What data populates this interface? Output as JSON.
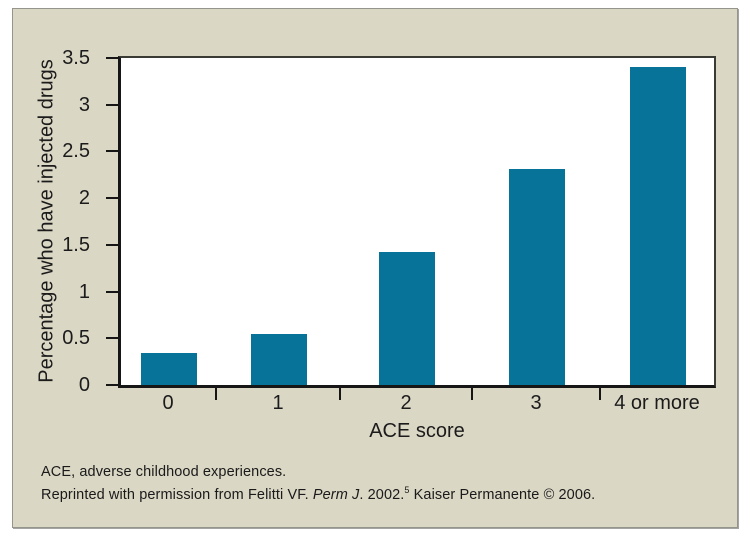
{
  "figure": {
    "footnote_line1": "ACE, adverse childhood experiences.",
    "footnote_line2": {
      "prefix": "Reprinted with permission from Felitti VF. ",
      "italic": "Perm J",
      "mid": ". 2002.",
      "superscript": "5",
      "suffix": " Kaiser Permanente © 2006."
    }
  },
  "chart_data": {
    "type": "bar",
    "title": "",
    "xlabel": "ACE score",
    "ylabel": "Percentage who have injected drugs",
    "categories": [
      "0",
      "1",
      "2",
      "3",
      "4 or more"
    ],
    "values": [
      0.34,
      0.55,
      1.42,
      2.31,
      3.4
    ],
    "ylim": [
      0,
      3.5
    ],
    "ytick_step": 0.5,
    "ytick_labels": [
      "0",
      "0.5",
      "1",
      "1.5",
      "2",
      "2.5",
      "3",
      "3.5"
    ],
    "grid": false,
    "legend": "none",
    "bar_color": "#077399",
    "panel_background": "#dbd7c5",
    "plot_background": "#ffffff"
  }
}
